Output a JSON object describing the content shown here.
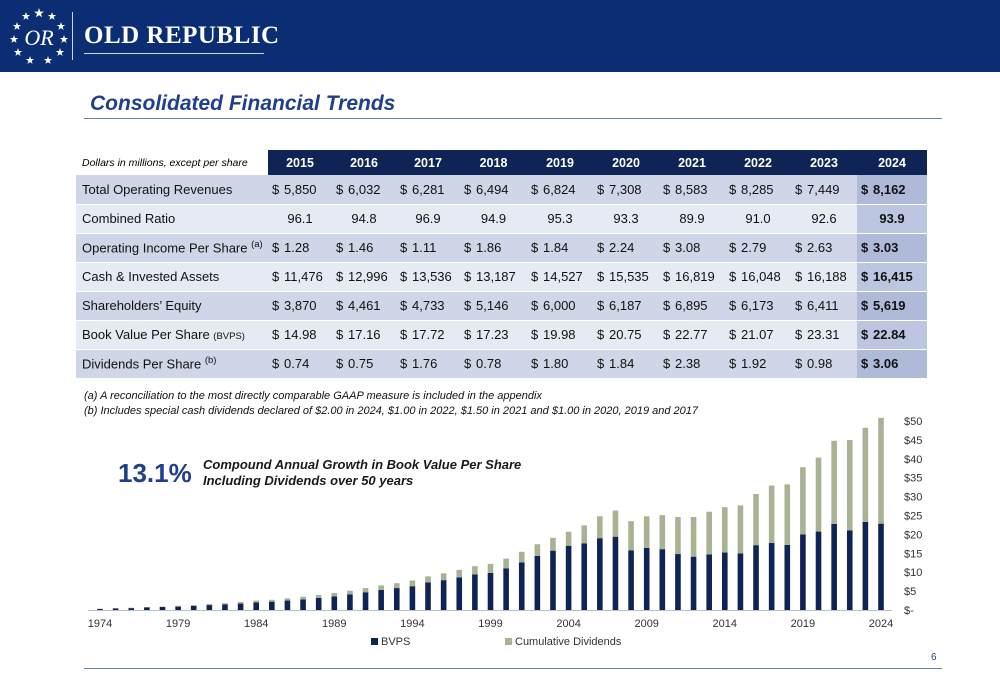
{
  "header": {
    "company": "OLD REPUBLIC",
    "logo_monogram": "OR",
    "brand_color": "#0b2d74"
  },
  "page_title": "Consolidated Financial Trends",
  "table": {
    "corner_label": "Dollars in millions, except per share",
    "years": [
      "2015",
      "2016",
      "2017",
      "2018",
      "2019",
      "2020",
      "2021",
      "2022",
      "2023",
      "2024"
    ],
    "rows": [
      {
        "label": "Total Operating Revenues",
        "sup": "",
        "suffix": "",
        "currency": true,
        "values": [
          "5,850",
          "6,032",
          "6,281",
          "6,494",
          "6,824",
          "7,308",
          "8,583",
          "8,285",
          "7,449",
          "8,162"
        ]
      },
      {
        "label": "Combined Ratio",
        "sup": "",
        "suffix": "",
        "currency": false,
        "values": [
          "96.1",
          "94.8",
          "96.9",
          "94.9",
          "95.3",
          "93.3",
          "89.9",
          "91.0",
          "92.6",
          "93.9"
        ]
      },
      {
        "label": "Operating Income Per Share",
        "sup": "(a)",
        "suffix": "",
        "currency": true,
        "values": [
          "1.28",
          "1.46",
          "1.11",
          "1.86",
          "1.84",
          "2.24",
          "3.08",
          "2.79",
          "2.63",
          "3.03"
        ]
      },
      {
        "label": "Cash & Invested Assets",
        "sup": "",
        "suffix": "",
        "currency": true,
        "values": [
          "11,476",
          "12,996",
          "13,536",
          "13,187",
          "14,527",
          "15,535",
          "16,819",
          "16,048",
          "16,188",
          "16,415"
        ]
      },
      {
        "label": "Shareholders’ Equity",
        "sup": "",
        "suffix": "",
        "currency": true,
        "values": [
          "3,870",
          "4,461",
          "4,733",
          "5,146",
          "6,000",
          "6,187",
          "6,895",
          "6,173",
          "6,411",
          "5,619"
        ]
      },
      {
        "label": "Book Value Per Share",
        "sup": "",
        "suffix": "(BVPS)",
        "currency": true,
        "values": [
          "14.98",
          "17.16",
          "17.72",
          "17.23",
          "19.98",
          "20.75",
          "22.77",
          "21.07",
          "23.31",
          "22.84"
        ]
      },
      {
        "label": "Dividends Per Share",
        "sup": "(b)",
        "suffix": "",
        "currency": true,
        "values": [
          "0.74",
          "0.75",
          "1.76",
          "0.78",
          "1.80",
          "1.84",
          "2.38",
          "1.92",
          "0.98",
          "3.06"
        ]
      }
    ]
  },
  "footnotes": [
    "(a) A reconciliation to the most directly comparable GAAP measure is included in the appendix",
    "(b) Includes special cash dividends declared of $2.00 in 2024, $1.00 in 2022, $1.50 in 2021 and $1.00 in 2020, 2019 and 2017"
  ],
  "cagr": {
    "value": "13.1%",
    "label_line1": "Compound Annual Growth in Book Value Per Share",
    "label_line2": "Including Dividends over 50 years"
  },
  "chart_data": {
    "type": "bar",
    "stacked": true,
    "x": [
      1974,
      1975,
      1976,
      1977,
      1978,
      1979,
      1980,
      1981,
      1982,
      1983,
      1984,
      1985,
      1986,
      1987,
      1988,
      1989,
      1990,
      1991,
      1992,
      1993,
      1994,
      1995,
      1996,
      1997,
      1998,
      1999,
      2000,
      2001,
      2002,
      2003,
      2004,
      2005,
      2006,
      2007,
      2008,
      2009,
      2010,
      2011,
      2012,
      2013,
      2014,
      2015,
      2016,
      2017,
      2018,
      2019,
      2020,
      2021,
      2022,
      2023,
      2024
    ],
    "x_tick_labels": [
      "1974",
      "1979",
      "1984",
      "1989",
      "1994",
      "1999",
      "2004",
      "2009",
      "2014",
      "2019",
      "2024"
    ],
    "series": [
      {
        "name": "BVPS",
        "color": "#0d2454",
        "values": [
          0.3,
          0.4,
          0.5,
          0.7,
          0.8,
          0.9,
          1.1,
          1.3,
          1.5,
          1.7,
          2.0,
          2.2,
          2.5,
          2.8,
          3.2,
          3.6,
          4.1,
          4.7,
          5.3,
          5.8,
          6.3,
          7.3,
          7.9,
          8.6,
          9.4,
          9.8,
          11.0,
          12.6,
          14.3,
          15.7,
          17.0,
          17.6,
          19.0,
          19.4,
          15.8,
          16.4,
          16.1,
          14.8,
          14.1,
          14.7,
          15.2,
          14.98,
          17.16,
          17.72,
          17.23,
          19.98,
          20.75,
          22.77,
          21.07,
          23.31,
          22.84
        ]
      },
      {
        "name": "Cumulative Dividends",
        "color": "#a9b293",
        "values": [
          0.0,
          0.1,
          0.1,
          0.1,
          0.1,
          0.2,
          0.2,
          0.3,
          0.3,
          0.4,
          0.5,
          0.5,
          0.6,
          0.7,
          0.8,
          0.9,
          1.0,
          1.1,
          1.2,
          1.3,
          1.5,
          1.6,
          1.8,
          2.0,
          2.2,
          2.4,
          2.6,
          2.8,
          3.1,
          3.4,
          3.7,
          4.8,
          5.8,
          6.9,
          7.7,
          8.4,
          9.0,
          9.8,
          10.5,
          11.3,
          12.0,
          12.7,
          13.5,
          15.2,
          16.0,
          17.8,
          19.6,
          22.0,
          23.9,
          24.9,
          28.0
        ]
      }
    ],
    "y_tick_labels": [
      "$-",
      "$5",
      "$10",
      "$15",
      "$20",
      "$25",
      "$30",
      "$35",
      "$40",
      "$45",
      "$50"
    ],
    "ylim": [
      0,
      50
    ],
    "grid": false,
    "legend_position": "bottom"
  },
  "page_number": "6"
}
